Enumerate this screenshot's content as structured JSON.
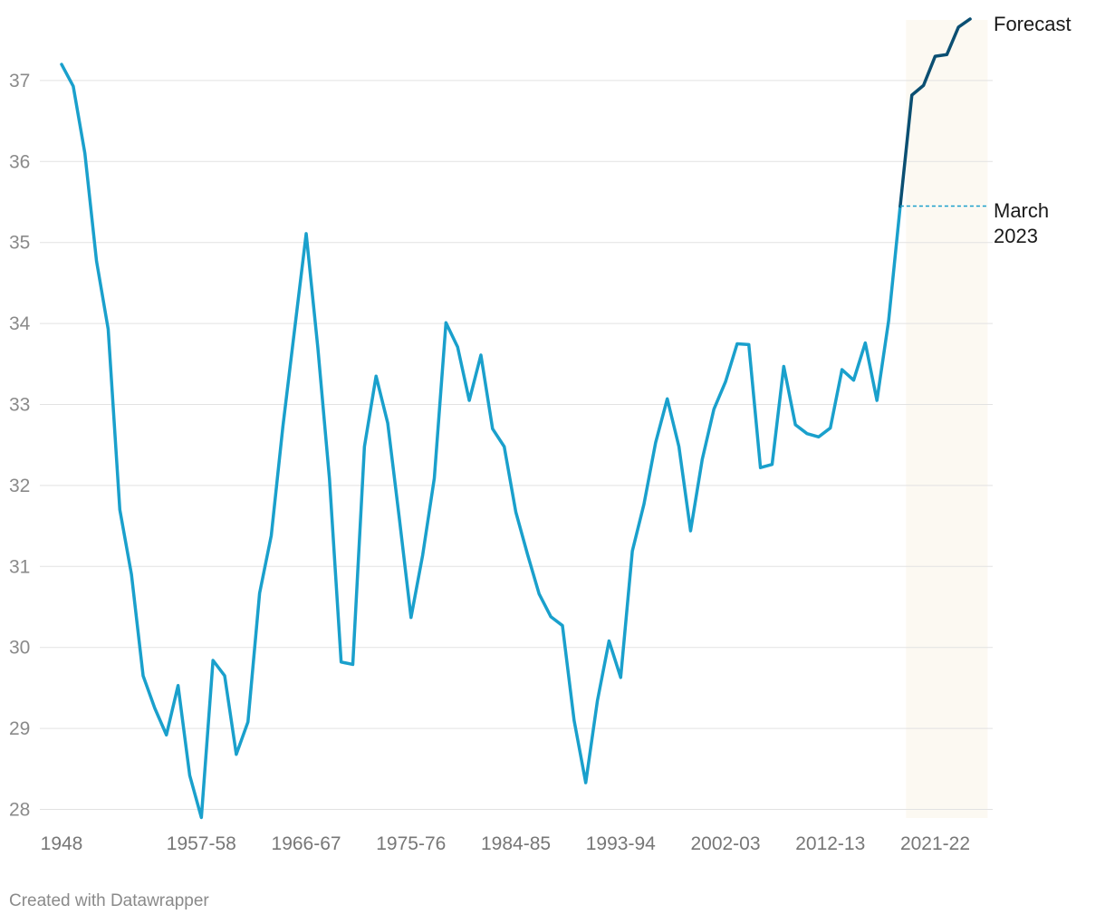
{
  "colors": {
    "actual_line": "#1aa0cc",
    "forecast_line": "#0b4f72",
    "forecast_shade": "#fcf9f2",
    "gridline": "#e2e2e2",
    "tick_text": "#8a8a8a"
  },
  "credit": "Created with Datawrapper",
  "chart_data": {
    "type": "line",
    "title": "",
    "xlabel": "",
    "ylabel": "",
    "ylim": [
      28,
      37.8
    ],
    "yticks": [
      28,
      29,
      30,
      31,
      32,
      33,
      34,
      35,
      36,
      37
    ],
    "grid": true,
    "x_tick_labels": [
      {
        "index": 0,
        "label": "1948"
      },
      {
        "index": 12,
        "label": "1957-58"
      },
      {
        "index": 21,
        "label": "1966-67"
      },
      {
        "index": 30,
        "label": "1975-76"
      },
      {
        "index": 39,
        "label": "1984-85"
      },
      {
        "index": 48,
        "label": "1993-94"
      },
      {
        "index": 57,
        "label": "2002-03"
      },
      {
        "index": 66,
        "label": "2012-13"
      },
      {
        "index": 75,
        "label": "2021-22"
      }
    ],
    "series": [
      {
        "values": [
          37.2,
          36.93,
          36.1,
          34.77,
          33.93,
          31.7,
          30.9,
          29.65,
          29.25,
          28.92,
          29.53,
          28.42,
          27.9,
          29.84,
          29.65,
          28.68,
          29.08,
          30.67,
          31.38,
          32.73,
          33.92,
          35.11,
          33.7,
          32.08,
          29.82,
          29.79,
          32.48,
          33.35,
          32.77,
          31.59,
          30.37,
          31.14,
          32.09,
          34.01,
          33.71,
          33.05,
          33.61,
          32.7,
          32.48,
          31.67,
          31.15,
          30.66,
          30.38,
          30.27,
          29.1,
          28.33,
          29.34,
          30.08,
          29.63,
          31.19,
          31.77,
          32.53,
          33.07,
          32.48,
          31.44,
          32.32,
          32.94,
          33.28,
          33.75,
          33.74,
          32.22,
          32.26,
          33.47,
          32.75,
          32.64,
          32.6,
          32.71,
          33.43,
          33.3,
          33.76,
          33.05,
          34.03,
          35.45
        ]
      },
      {
        "values": [
          35.45,
          36.82,
          36.94,
          37.3,
          37.32,
          37.66,
          37.76
        ],
        "start_index": 72
      }
    ],
    "forecast_band": {
      "start_index": 72.5,
      "end_index": 79.5
    },
    "annotations": [
      {
        "label": "Forecast"
      },
      {
        "label": "March 2023",
        "value": 35.45,
        "index": 72
      }
    ]
  }
}
